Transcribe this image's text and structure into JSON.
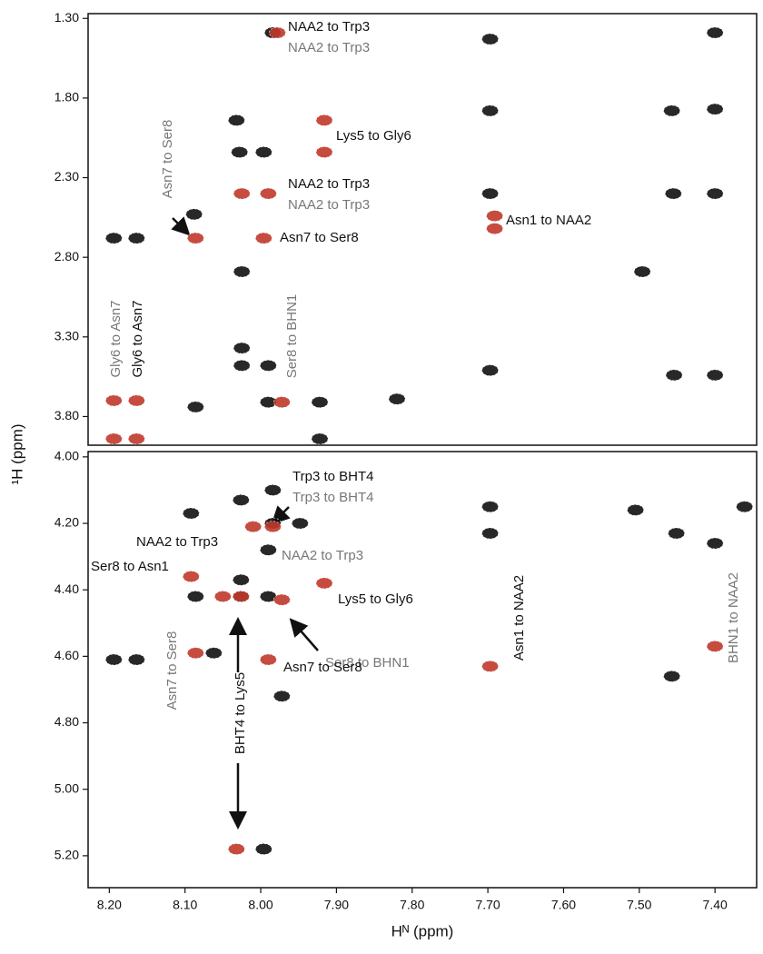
{
  "chart_data": [
    {
      "type": "scatter",
      "ylabel": "¹H (ppm)",
      "xlim": [
        8.228,
        7.345
      ],
      "ylim": [
        1.27,
        3.98
      ],
      "yticks": [
        {
          "value": 1.3,
          "label": "1.30"
        },
        {
          "value": 1.8,
          "label": "1.80"
        },
        {
          "value": 2.3,
          "label": "2.30"
        },
        {
          "value": 2.8,
          "label": "2.80"
        },
        {
          "value": 3.3,
          "label": "3.30"
        },
        {
          "value": 3.8,
          "label": "3.80"
        }
      ],
      "series": [
        {
          "color": "#111111",
          "x": [
            8.194,
            8.164,
            8.088,
            8.032,
            8.028,
            7.996,
            8.025,
            8.025,
            8.025,
            7.99,
            7.99,
            8.086,
            7.922,
            7.922,
            7.82,
            7.697,
            7.697,
            7.697,
            7.697,
            7.496,
            7.457,
            7.4,
            7.4,
            7.4,
            7.455,
            7.454,
            7.4,
            7.984
          ],
          "values": [
            2.68,
            2.68,
            2.53,
            1.94,
            2.14,
            2.14,
            2.89,
            3.37,
            3.48,
            3.48,
            3.71,
            3.74,
            3.71,
            3.94,
            3.69,
            2.4,
            1.88,
            1.43,
            3.51,
            2.89,
            1.88,
            1.87,
            1.39,
            2.4,
            2.4,
            3.54,
            3.54,
            1.39
          ]
        },
        {
          "color": "#c0392b",
          "x": [
            8.194,
            8.164,
            8.194,
            8.164,
            8.086,
            7.996,
            7.972,
            7.916,
            7.916,
            8.025,
            7.99,
            7.691,
            7.691,
            7.978
          ],
          "values": [
            3.7,
            3.7,
            3.94,
            3.94,
            2.68,
            2.68,
            3.71,
            1.94,
            2.14,
            2.4,
            2.4,
            2.54,
            2.62,
            1.39
          ]
        }
      ],
      "annotations": [
        {
          "text": "NAA2 to Trp3",
          "color": "#111111"
        },
        {
          "text": "NAA2 to Trp3",
          "color": "#777777"
        },
        {
          "text": "Lys5 to Gly6",
          "color": "#111111"
        },
        {
          "text": "NAA2 to Trp3",
          "color": "#111111"
        },
        {
          "text": "NAA2 to Trp3",
          "color": "#777777"
        },
        {
          "text": "Asn7 to Ser8",
          "color": "#111111"
        },
        {
          "text": "Asn1 to NAA2",
          "color": "#111111"
        },
        {
          "text": "Asn7 to Ser8",
          "color": "#777777"
        },
        {
          "text": "Gly6 to Asn7",
          "color": "#777777"
        },
        {
          "text": "Gly6 to Asn7",
          "color": "#111111"
        },
        {
          "text": "Ser8 to BHN1",
          "color": "#777777"
        }
      ]
    },
    {
      "type": "scatter",
      "xlabel": "Hᴺ (ppm)",
      "xlim": [
        8.228,
        7.345
      ],
      "ylim": [
        3.984,
        5.296
      ],
      "xticks": [
        {
          "value": 8.2,
          "label": "8.20"
        },
        {
          "value": 8.1,
          "label": "8.10"
        },
        {
          "value": 8.0,
          "label": "8.00"
        },
        {
          "value": 7.9,
          "label": "7.90"
        },
        {
          "value": 7.8,
          "label": "7.80"
        },
        {
          "value": 7.7,
          "label": "7.70"
        },
        {
          "value": 7.6,
          "label": "7.60"
        },
        {
          "value": 7.5,
          "label": "7.50"
        },
        {
          "value": 7.4,
          "label": "7.40"
        }
      ],
      "yticks": [
        {
          "value": 4.0,
          "label": "4.00"
        },
        {
          "value": 4.2,
          "label": "4.20"
        },
        {
          "value": 4.4,
          "label": "4.40"
        },
        {
          "value": 4.6,
          "label": "4.60"
        },
        {
          "value": 4.8,
          "label": "4.80"
        },
        {
          "value": 5.0,
          "label": "5.00"
        },
        {
          "value": 5.2,
          "label": "5.20"
        }
      ],
      "series": [
        {
          "color": "#111111",
          "x": [
            8.092,
            8.026,
            7.984,
            7.984,
            7.99,
            7.948,
            8.026,
            8.026,
            7.99,
            8.086,
            8.194,
            8.164,
            8.062,
            7.972,
            7.996,
            7.697,
            7.697,
            7.505,
            7.451,
            7.4,
            7.361,
            7.457
          ],
          "values": [
            4.17,
            4.13,
            4.1,
            4.2,
            4.28,
            4.2,
            4.37,
            4.42,
            4.42,
            4.42,
            4.61,
            4.61,
            4.59,
            4.72,
            5.18,
            4.15,
            4.23,
            4.16,
            4.23,
            4.26,
            4.15,
            4.66
          ]
        },
        {
          "color": "#c0392b",
          "x": [
            8.092,
            8.026,
            8.05,
            7.972,
            7.916,
            8.086,
            7.99,
            7.697,
            7.4,
            8.032,
            7.984,
            8.01
          ],
          "values": [
            4.36,
            4.42,
            4.42,
            4.43,
            4.38,
            4.59,
            4.61,
            4.63,
            4.57,
            5.18,
            4.21,
            4.21
          ]
        }
      ],
      "annotations": [
        {
          "text": "Trp3 to BHT4",
          "color": "#111111"
        },
        {
          "text": "Trp3 to BHT4",
          "color": "#777777"
        },
        {
          "text": "NAA2 to Trp3",
          "color": "#111111"
        },
        {
          "text": "NAA2 to Trp3",
          "color": "#777777"
        },
        {
          "text": "Ser8 to Asn1",
          "color": "#111111"
        },
        {
          "text": "Lys5 to Gly6",
          "color": "#111111"
        },
        {
          "text": "Ser8 to BHN1",
          "color": "#777777"
        },
        {
          "text": "Asn7 to Ser8",
          "color": "#111111"
        },
        {
          "text": "Asn1 to NAA2",
          "color": "#111111"
        },
        {
          "text": "BHN1 to NAA2",
          "color": "#777777"
        },
        {
          "text": "Asn7 to Ser8",
          "color": "#777777"
        },
        {
          "text": "BHT4 to Lys5",
          "color": "#111111"
        }
      ]
    }
  ]
}
